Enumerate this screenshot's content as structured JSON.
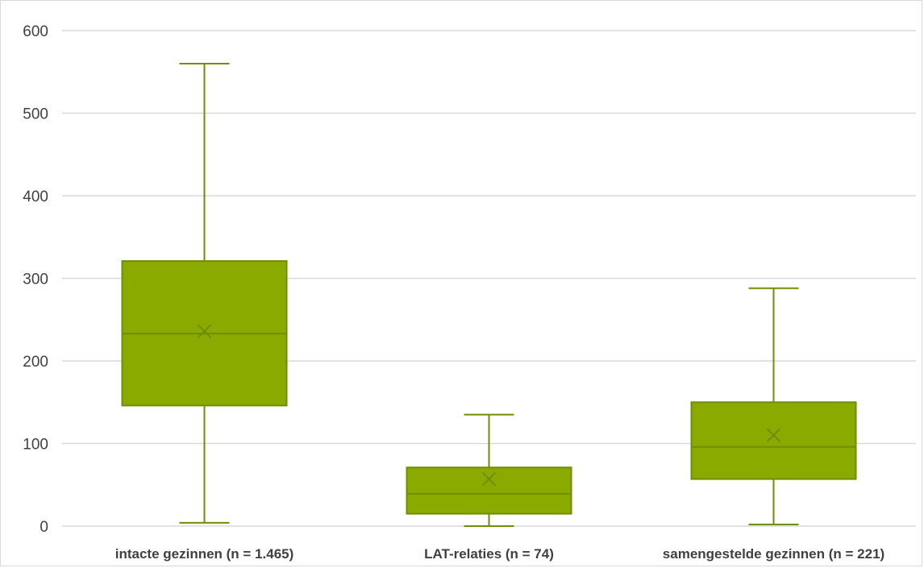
{
  "chart_data": {
    "type": "boxplot",
    "title": "",
    "xlabel": "",
    "ylabel": "",
    "ylim": [
      0,
      600
    ],
    "yticks": [
      0,
      100,
      200,
      300,
      400,
      500,
      600
    ],
    "grid": true,
    "legend": "none",
    "colors": {
      "box_fill": "#8aaa00",
      "box_stroke": "#6f8e00",
      "grid": "#d9d9d9"
    },
    "categories": [
      "intacte gezinnen (n = 1.465)",
      "LAT-relaties (n = 74)",
      "samengestelde gezinnen (n = 221)"
    ],
    "boxes": [
      {
        "min": 4,
        "q1": 146,
        "median": 233,
        "q3": 321,
        "max": 560,
        "mean": 236
      },
      {
        "min": 0,
        "q1": 15,
        "median": 39,
        "q3": 71,
        "max": 135,
        "mean": 57
      },
      {
        "min": 2,
        "q1": 57,
        "median": 96,
        "q3": 150,
        "max": 288,
        "mean": 110
      }
    ]
  }
}
